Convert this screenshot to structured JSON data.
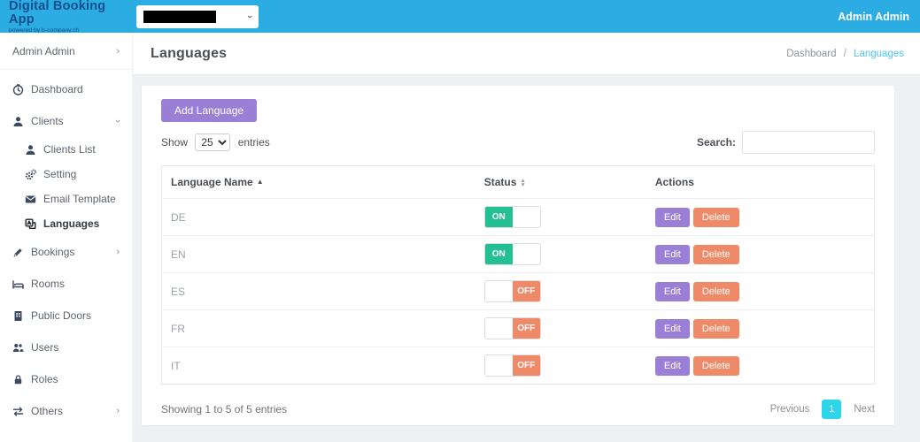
{
  "header": {
    "app_title": "Digital Booking App",
    "app_subtitle": "powered by b-company.ch",
    "user_label": "Admin Admin"
  },
  "sidebar": {
    "items": [
      {
        "label": "Admin Admin",
        "icon": null,
        "chevron": "right",
        "profile": true
      },
      {
        "label": "Dashboard",
        "icon": "clock-icon"
      },
      {
        "label": "Clients",
        "icon": "user-icon",
        "chevron": "down",
        "open": true,
        "children": [
          {
            "label": "Clients List",
            "icon": "user-icon"
          },
          {
            "label": "Setting",
            "icon": "gears-icon"
          },
          {
            "label": "Email Template",
            "icon": "envelope-icon"
          },
          {
            "label": "Languages",
            "icon": "translate-icon",
            "active": true
          }
        ]
      },
      {
        "label": "Bookings",
        "icon": "pen-icon",
        "chevron": "right"
      },
      {
        "label": "Rooms",
        "icon": "bed-icon"
      },
      {
        "label": "Public Doors",
        "icon": "door-icon"
      },
      {
        "label": "Users",
        "icon": "users-icon"
      },
      {
        "label": "Roles",
        "icon": "lock-icon"
      },
      {
        "label": "Others",
        "icon": "arrows-icon",
        "chevron": "right"
      }
    ]
  },
  "page": {
    "title": "Languages",
    "breadcrumb_parent": "Dashboard",
    "breadcrumb_sep": "/",
    "breadcrumb_current": "Languages"
  },
  "toolbar": {
    "add_button": "Add Language",
    "show_label": "Show",
    "page_size": "25",
    "entries_label": "entries",
    "search_label": "Search:"
  },
  "table": {
    "columns": [
      {
        "label": "Language Name",
        "sort": "asc"
      },
      {
        "label": "Status",
        "sort": "both"
      },
      {
        "label": "Actions",
        "sort": "none"
      }
    ],
    "rows": [
      {
        "name": "DE",
        "status": "ON"
      },
      {
        "name": "EN",
        "status": "ON"
      },
      {
        "name": "ES",
        "status": "OFF"
      },
      {
        "name": "FR",
        "status": "OFF"
      },
      {
        "name": "IT",
        "status": "OFF"
      }
    ],
    "toggle_on_label": "ON",
    "toggle_off_label": "OFF",
    "edit_label": "Edit",
    "delete_label": "Delete"
  },
  "footer": {
    "summary": "Showing 1 to 5 of 5 entries",
    "previous_label": "Previous",
    "page_number": "1",
    "next_label": "Next"
  },
  "colors": {
    "header_blue": "#2badE4",
    "brand_text": "#114e8d",
    "accent_purple": "#9b7ed6",
    "toggle_green": "#24bf92",
    "toggle_orange": "#ef8a68",
    "pager_cyan": "#2ed5e8",
    "breadcrumb_link": "#4cc3f0"
  }
}
